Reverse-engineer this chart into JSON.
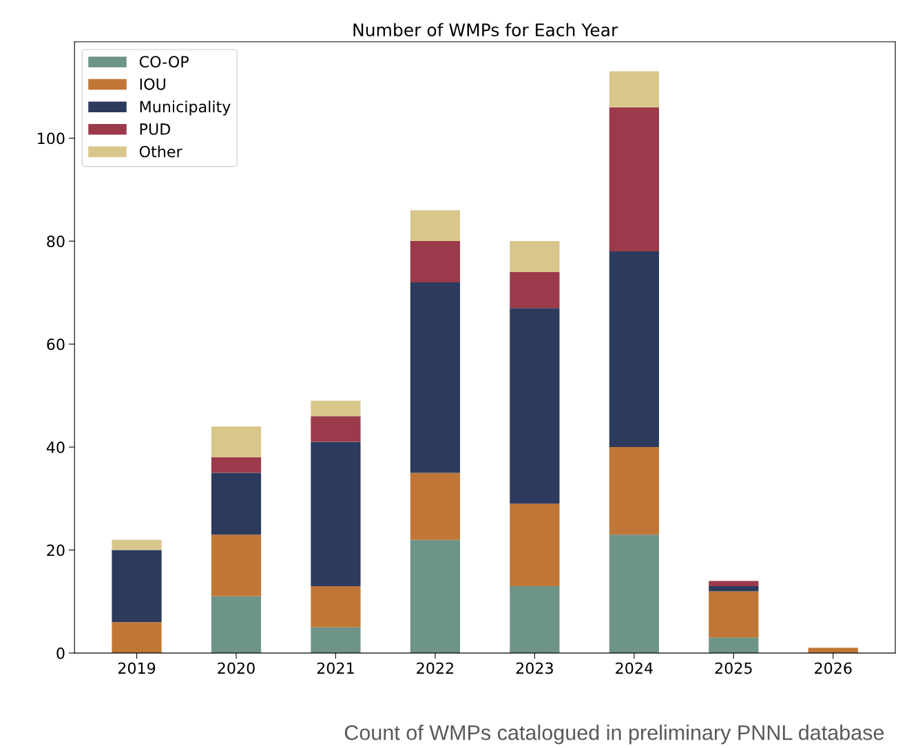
{
  "chart_data": {
    "type": "bar",
    "title": "Number of WMPs for Each Year",
    "stacked": true,
    "categories": [
      "2019",
      "2020",
      "2021",
      "2022",
      "2023",
      "2024",
      "2025",
      "2026"
    ],
    "series": [
      {
        "name": "CO-OP",
        "color": "#6e9488",
        "values": [
          0,
          11,
          5,
          22,
          13,
          23,
          3,
          0
        ]
      },
      {
        "name": "IOU",
        "color": "#c07636",
        "values": [
          6,
          12,
          8,
          13,
          16,
          17,
          9,
          1
        ]
      },
      {
        "name": "Municipality",
        "color": "#2c3a5e",
        "values": [
          14,
          12,
          28,
          37,
          38,
          38,
          1,
          0
        ]
      },
      {
        "name": "PUD",
        "color": "#9a3a4a",
        "values": [
          0,
          3,
          5,
          8,
          7,
          28,
          1,
          0
        ]
      },
      {
        "name": "Other",
        "color": "#d9c68b",
        "values": [
          2,
          6,
          3,
          6,
          6,
          7,
          0,
          0
        ]
      }
    ],
    "ylim": [
      0,
      118.7
    ],
    "yticks": [
      0,
      20,
      40,
      60,
      80,
      100
    ],
    "grid": false,
    "legend": "top left",
    "annotations": [
      "Count of WMPs catalogued in preliminary PNNL database"
    ]
  }
}
